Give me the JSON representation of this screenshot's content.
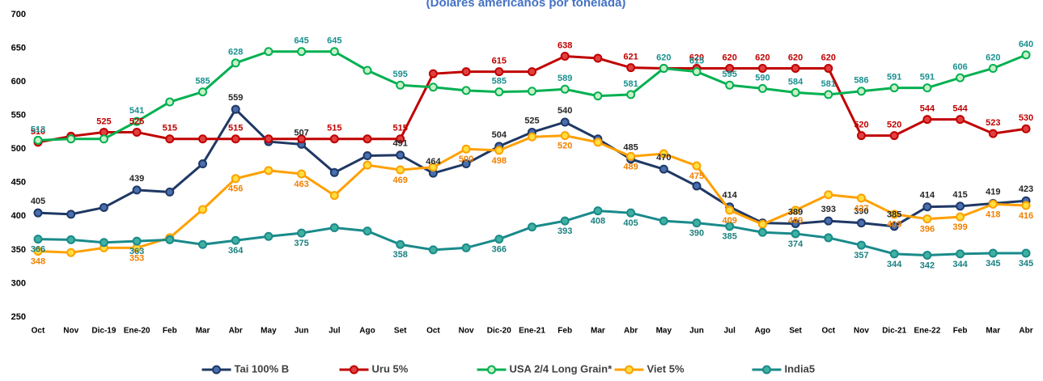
{
  "chart_data": {
    "type": "line",
    "title": "(Dólares americanos por tonelada)",
    "categories": [
      "Oct",
      "Nov",
      "Dic-19",
      "Ene-20",
      "Feb",
      "Mar",
      "Abr",
      "May",
      "Jun",
      "Jul",
      "Ago",
      "Set",
      "Oct",
      "Nov",
      "Dic-20",
      "Ene-21",
      "Feb",
      "Mar",
      "Abr",
      "May",
      "Jun",
      "Jul",
      "Ago",
      "Set",
      "Oct",
      "Nov",
      "Dic-21",
      "Ene-22",
      "Feb",
      "Mar",
      "Abr"
    ],
    "ylim": [
      250,
      700
    ],
    "yticks": [
      250,
      300,
      350,
      400,
      450,
      500,
      550,
      600,
      650,
      700
    ],
    "grid": false,
    "legend": "bottom",
    "series": [
      {
        "name": "Tai 100% B",
        "color": "#1f3864",
        "marker_fill": "#4a6fb0",
        "label_color": "#262626",
        "values": [
          405,
          403,
          413,
          439,
          436,
          478,
          559,
          511,
          507,
          465,
          490,
          491,
          464,
          478,
          504,
          525,
          540,
          515,
          485,
          470,
          445,
          414,
          390,
          389,
          393,
          390,
          385,
          414,
          415,
          419,
          423
        ],
        "value_labels": [
          "405",
          null,
          null,
          "439",
          null,
          null,
          "559",
          null,
          "507",
          null,
          null,
          "491",
          "464",
          null,
          "504",
          "525",
          "540",
          null,
          "485",
          "470",
          null,
          "414",
          null,
          "389",
          "393",
          "390",
          "385",
          "414",
          "415",
          "419",
          "423"
        ]
      },
      {
        "name": "Uru 5%",
        "color": "#c00000",
        "marker_fill": "#e04040",
        "label_color": "#c00000",
        "values": [
          510,
          519,
          525,
          525,
          515,
          515,
          515,
          515,
          515,
          515,
          515,
          515,
          612,
          615,
          615,
          615,
          638,
          635,
          621,
          620,
          620,
          620,
          620,
          620,
          620,
          520,
          520,
          544,
          544,
          523,
          530
        ],
        "value_labels": [
          "510",
          null,
          "525",
          "525",
          "515",
          null,
          "515",
          null,
          null,
          "515",
          null,
          "515",
          null,
          null,
          "615",
          null,
          "638",
          null,
          "621",
          null,
          "620",
          "620",
          "620",
          "620",
          "620",
          "520",
          "520",
          "544",
          "544",
          "523",
          "530"
        ]
      },
      {
        "name": "USA 2/4 Long Grain*",
        "color": "#00b050",
        "marker_fill": "#c8f0c8",
        "label_color": "#1a9090",
        "values": [
          513,
          515,
          515,
          541,
          570,
          585,
          628,
          645,
          645,
          645,
          617,
          595,
          592,
          587,
          585,
          586,
          589,
          579,
          581,
          620,
          615,
          595,
          590,
          584,
          581,
          586,
          591,
          591,
          606,
          620,
          640
        ],
        "value_labels": [
          "513",
          null,
          null,
          "541",
          null,
          "585",
          "628",
          null,
          "645",
          "645",
          null,
          "595",
          null,
          null,
          "585",
          null,
          "589",
          null,
          "581",
          "620",
          "615",
          "595",
          "590",
          "584",
          "581",
          "586",
          "591",
          "591",
          "606",
          "620",
          "640"
        ]
      },
      {
        "name": "Viet 5%",
        "color": "#ffa000",
        "marker_fill": "#ffe040",
        "label_color": "#f08000",
        "values": [
          348,
          346,
          353,
          353,
          368,
          410,
          456,
          468,
          463,
          431,
          476,
          469,
          473,
          500,
          498,
          518,
          520,
          510,
          489,
          493,
          475,
          409,
          388,
          409,
          432,
          427,
          403,
          396,
          399,
          418,
          416
        ],
        "value_labels": [
          "348",
          null,
          null,
          "353",
          null,
          null,
          "456",
          null,
          "463",
          null,
          null,
          "469",
          null,
          "500",
          "498",
          null,
          "520",
          null,
          "489",
          null,
          "475",
          "409",
          null,
          "409",
          null,
          "427",
          "403",
          "396",
          "399",
          "418",
          "416"
        ]
      },
      {
        "name": "India5",
        "color": "#1a8a8a",
        "marker_fill": "#40b0a0",
        "label_color": "#1a8080",
        "values": [
          366,
          365,
          361,
          363,
          365,
          358,
          364,
          370,
          375,
          383,
          378,
          358,
          350,
          353,
          366,
          384,
          393,
          408,
          405,
          393,
          390,
          385,
          376,
          374,
          368,
          357,
          344,
          342,
          344,
          345,
          345
        ],
        "value_labels": [
          "366",
          null,
          null,
          "363",
          null,
          null,
          "364",
          null,
          "375",
          null,
          null,
          "358",
          null,
          null,
          "366",
          null,
          "393",
          "408",
          "405",
          null,
          "390",
          "385",
          null,
          "374",
          null,
          "357",
          "344",
          "342",
          "344",
          "345",
          "345"
        ]
      }
    ]
  }
}
